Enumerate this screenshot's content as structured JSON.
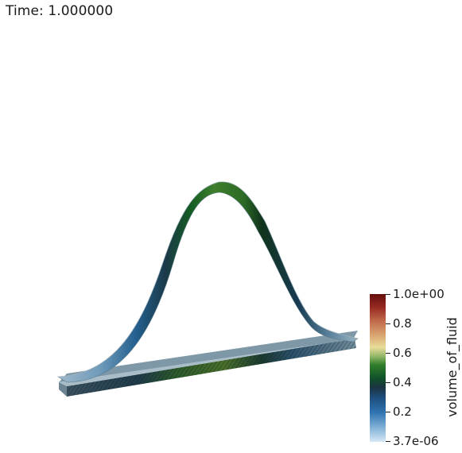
{
  "viewer": {
    "time_label": "Time: 1.000000"
  },
  "scalar_bar": {
    "title": "volume_of_fluid",
    "ticks": [
      "1.0e+00",
      "0.8",
      "0.6",
      "0.4",
      "0.2",
      "3.7e-06"
    ],
    "colormap": [
      "#d6e8f6",
      "#2e73b0",
      "#1b3440",
      "#10502a",
      "#2f7e2a",
      "#e8dc98",
      "#c0694a",
      "#650e0c"
    ]
  },
  "scene": {
    "objects": [
      "curved-fluid-surface",
      "flat-mesh-plate"
    ]
  }
}
